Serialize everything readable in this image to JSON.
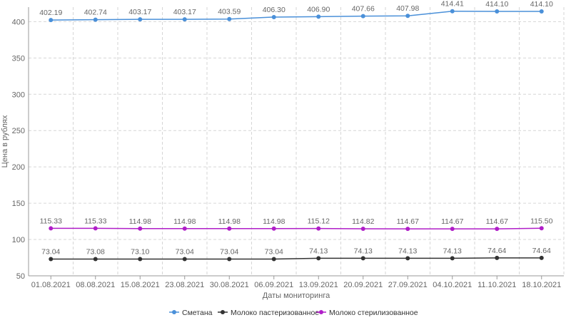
{
  "chart_data": {
    "type": "line",
    "title": "",
    "xlabel": "Даты мониторинга",
    "ylabel": "Цена в рублях",
    "ylim": [
      50,
      420
    ],
    "yticks": [
      50,
      100,
      150,
      200,
      250,
      300,
      350,
      400
    ],
    "grid": true,
    "legend_position": "bottom",
    "categories": [
      "01.08.2021",
      "08.08.2021",
      "15.08.2021",
      "23.08.2021",
      "30.08.2021",
      "06.09.2021",
      "13.09.2021",
      "20.09.2021",
      "27.09.2021",
      "04.10.2021",
      "11.10.2021",
      "18.10.2021"
    ],
    "series": [
      {
        "name": "Сметана",
        "color": "#4a90d9",
        "values": [
          402.19,
          402.74,
          403.17,
          403.17,
          403.59,
          406.3,
          406.9,
          407.66,
          407.98,
          414.41,
          414.1,
          414.1
        ],
        "labels": [
          "402.19",
          "402.74",
          "403.17",
          "403.17",
          "403.59",
          "406.30",
          "406.90",
          "407.66",
          "407.98",
          "414.41",
          "414.10",
          "414.10"
        ]
      },
      {
        "name": "Молоко пастеризованное",
        "color": "#333333",
        "values": [
          73.04,
          73.08,
          73.1,
          73.04,
          73.04,
          73.04,
          74.13,
          74.13,
          74.13,
          74.13,
          74.64,
          74.64
        ],
        "labels": [
          "73.04",
          "73.08",
          "73.10",
          "73.04",
          "73.04",
          "73.04",
          "74.13",
          "74.13",
          "74.13",
          "74.13",
          "74.64",
          "74.64"
        ]
      },
      {
        "name": "Молоко стерилизованное",
        "color": "#b01ec8",
        "values": [
          115.33,
          115.33,
          114.98,
          114.98,
          114.98,
          114.98,
          115.12,
          114.82,
          114.67,
          114.67,
          114.67,
          115.5
        ],
        "labels": [
          "115.33",
          "115.33",
          "114.98",
          "114.98",
          "114.98",
          "114.98",
          "115.12",
          "114.82",
          "114.67",
          "114.67",
          "114.67",
          "115.50"
        ]
      }
    ]
  }
}
